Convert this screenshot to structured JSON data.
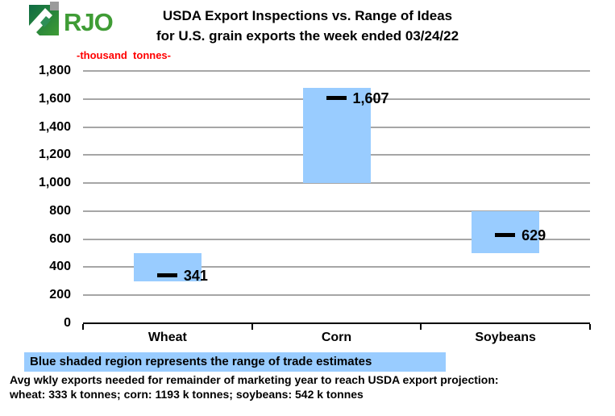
{
  "logo": {
    "text": "RJO"
  },
  "title": {
    "line1": "USDA Export Inspections vs. Range of Ideas",
    "line2": "for U.S. grain exports the week ended 03/24/22"
  },
  "chart_data": {
    "type": "bar",
    "subtype": "floating-range-bars-with-actual-markers",
    "title": "USDA Export Inspections vs. Range of Ideas for U.S. grain exports the week ended 03/24/22",
    "categories": [
      "Wheat",
      "Corn",
      "Soybeans"
    ],
    "series": [
      {
        "name": "Range of trade estimates",
        "low": [
          300,
          1000,
          500
        ],
        "high": [
          500,
          1680,
          800
        ]
      },
      {
        "name": "USDA export inspections (actual)",
        "values": [
          341,
          1607,
          629
        ],
        "labels": [
          "341",
          "1,607",
          "629"
        ]
      }
    ],
    "xlabel": "",
    "ylabel": "-thousand  tonnes-",
    "ylim": [
      0,
      1800
    ],
    "ytick_step": 200,
    "yticks": [
      "0",
      "200",
      "400",
      "600",
      "800",
      "1,000",
      "1,200",
      "1,400",
      "1,600",
      "1,800"
    ],
    "grid": true,
    "legend_position": "bottom-strip"
  },
  "legend": {
    "text": "Blue shaded region represents the range of trade estimates"
  },
  "footer": {
    "line1": "Avg wkly exports needed for remainder of marketing year to reach USDA export projection:",
    "line2": "wheat: 333 k tonnes; corn: 1193 k tonnes; soybeans: 542 k tonnes"
  },
  "colors": {
    "bar": "#99CCFF",
    "grid": "#A6A6A6",
    "axis": "#000000",
    "unit_label": "#FF0000",
    "legend_bg": "#99CCFF",
    "text": "#000000",
    "logo_green": "#3F9C35",
    "logo_dark": "#0E6B44",
    "logo_mid": "#2E8F57",
    "logo_gray": "#9B9B9B"
  }
}
